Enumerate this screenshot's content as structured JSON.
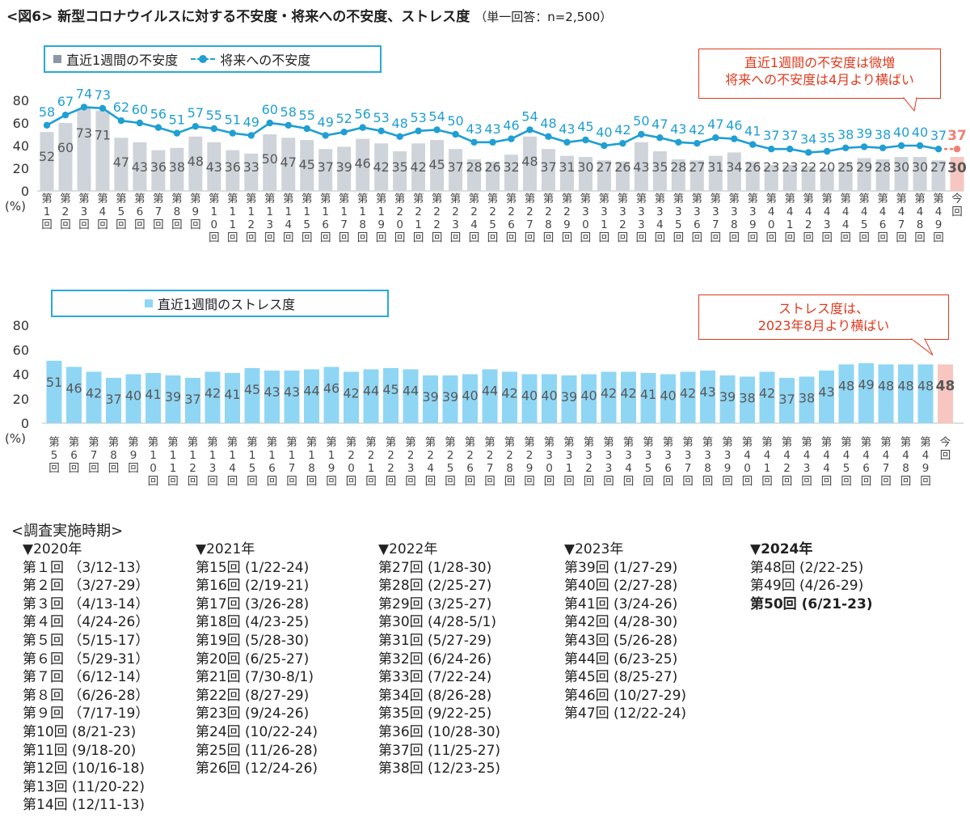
{
  "header": {
    "title": "<図6> 新型コロナウイルスに対する不安度・将来への不安度、ストレス度",
    "note": "（単一回答：n=2,500）"
  },
  "chart_data": [
    {
      "type": "bar+line",
      "categories": [
        "第1回",
        "第2回",
        "第3回",
        "第4回",
        "第5回",
        "第6回",
        "第7回",
        "第8回",
        "第9回",
        "第10回",
        "第11回",
        "第12回",
        "第13回",
        "第14回",
        "第15回",
        "第16回",
        "第17回",
        "第18回",
        "第19回",
        "第20回",
        "第21回",
        "第22回",
        "第23回",
        "第24回",
        "第25回",
        "第26回",
        "第27回",
        "第28回",
        "第29回",
        "第30回",
        "第31回",
        "第32回",
        "第33回",
        "第34回",
        "第35回",
        "第36回",
        "第37回",
        "第38回",
        "第39回",
        "第40回",
        "第41回",
        "第42回",
        "第43回",
        "第44回",
        "第45回",
        "第46回",
        "第47回",
        "第48回",
        "第49回",
        "今回"
      ],
      "series": [
        {
          "name": "直近1週間の不安度",
          "kind": "bar",
          "values": [
            52,
            60,
            73,
            71,
            47,
            43,
            36,
            38,
            48,
            43,
            36,
            33,
            50,
            47,
            45,
            37,
            39,
            46,
            42,
            35,
            42,
            45,
            37,
            28,
            26,
            32,
            48,
            37,
            31,
            30,
            27,
            26,
            43,
            35,
            28,
            27,
            31,
            34,
            26,
            23,
            23,
            22,
            20,
            25,
            29,
            28,
            30,
            30,
            27,
            30
          ]
        },
        {
          "name": "将来への不安度",
          "kind": "line",
          "values": [
            58,
            67,
            74,
            73,
            62,
            60,
            56,
            51,
            57,
            55,
            51,
            49,
            60,
            58,
            55,
            49,
            52,
            56,
            53,
            48,
            53,
            54,
            50,
            43,
            43,
            46,
            54,
            48,
            43,
            45,
            40,
            42,
            50,
            47,
            43,
            42,
            47,
            46,
            41,
            37,
            37,
            34,
            35,
            38,
            39,
            38,
            40,
            40,
            37,
            37
          ]
        }
      ],
      "ylim": [
        0,
        80
      ],
      "yticks": [
        "0",
        "20",
        "40",
        "60",
        "80"
      ],
      "ylabel": "(%)",
      "legend": {
        "bar_label": "直近1週間の不安度",
        "line_label": "将来への不安度"
      },
      "callout": {
        "line1": "直近1週間の不安度は微増",
        "line2": "将来への不安度は4月より横ばい"
      },
      "colors": {
        "bar": "#cfd4da",
        "bar_highlight": "#f7c6c0",
        "line": "#1f9fd3",
        "line_highlight": "#f08070",
        "bar_label": "#595959",
        "highlight_label": "#f08070"
      }
    },
    {
      "type": "bar",
      "categories": [
        "第5回",
        "第6回",
        "第7回",
        "第8回",
        "第9回",
        "第10回",
        "第11回",
        "第12回",
        "第13回",
        "第14回",
        "第15回",
        "第16回",
        "第17回",
        "第18回",
        "第19回",
        "第20回",
        "第21回",
        "第22回",
        "第23回",
        "第24回",
        "第25回",
        "第26回",
        "第27回",
        "第28回",
        "第29回",
        "第30回",
        "第31回",
        "第32回",
        "第33回",
        "第34回",
        "第35回",
        "第36回",
        "第37回",
        "第38回",
        "第39回",
        "第40回",
        "第41回",
        "第42回",
        "第43回",
        "第44回",
        "第45回",
        "第46回",
        "第47回",
        "第48回",
        "第49回",
        "今回"
      ],
      "series": [
        {
          "name": "直近1週間のストレス度",
          "kind": "bar",
          "values": [
            51,
            46,
            42,
            37,
            40,
            41,
            39,
            37,
            42,
            41,
            45,
            43,
            43,
            44,
            46,
            42,
            44,
            45,
            44,
            39,
            39,
            40,
            44,
            42,
            40,
            40,
            39,
            40,
            42,
            42,
            41,
            40,
            42,
            43,
            39,
            38,
            42,
            37,
            38,
            43,
            48,
            49,
            48,
            48,
            48,
            48
          ]
        }
      ],
      "ylim": [
        0,
        80
      ],
      "yticks": [
        "0",
        "20",
        "40",
        "60",
        "80"
      ],
      "ylabel": "(%)",
      "legend": {
        "bar_label": "直近1週間のストレス度"
      },
      "callout": {
        "line1": "ストレス度は、",
        "line2": "2023年8月より横ばい"
      },
      "colors": {
        "bar": "#8fd6f4",
        "bar_highlight": "#f7c6c0",
        "bar_label": "#595959",
        "highlight_label": "#595959"
      }
    }
  ],
  "schedule": {
    "heading": "<調査実施時期>",
    "years": [
      {
        "year": "▼2020年",
        "bold": false,
        "rounds": [
          {
            "round": "第１回",
            "dates": "（3/12-13）"
          },
          {
            "round": "第２回",
            "dates": "（3/27-29）"
          },
          {
            "round": "第３回",
            "dates": "（4/13-14）"
          },
          {
            "round": "第４回",
            "dates": "（4/24-26）"
          },
          {
            "round": "第５回",
            "dates": "（5/15-17）"
          },
          {
            "round": "第６回",
            "dates": "（5/29-31）"
          },
          {
            "round": "第７回",
            "dates": "（6/12-14）"
          },
          {
            "round": "第８回",
            "dates": "（6/26-28）"
          },
          {
            "round": "第９回",
            "dates": "（7/17-19）"
          },
          {
            "round": "第10回",
            "dates": "(8/21-23)"
          },
          {
            "round": "第11回",
            "dates": "(9/18-20)"
          },
          {
            "round": "第12回",
            "dates": "(10/16-18)"
          },
          {
            "round": "第13回",
            "dates": "(11/20-22)"
          },
          {
            "round": "第14回",
            "dates": "(12/11-13)"
          }
        ]
      },
      {
        "year": "▼2021年",
        "bold": false,
        "rounds": [
          {
            "round": "第15回",
            "dates": "(1/22-24)"
          },
          {
            "round": "第16回",
            "dates": "(2/19-21)"
          },
          {
            "round": "第17回",
            "dates": "(3/26-28)"
          },
          {
            "round": "第18回",
            "dates": "(4/23-25)"
          },
          {
            "round": "第19回",
            "dates": "(5/28-30)"
          },
          {
            "round": "第20回",
            "dates": "(6/25-27)"
          },
          {
            "round": "第21回",
            "dates": "(7/30-8/1)"
          },
          {
            "round": "第22回",
            "dates": "(8/27-29)"
          },
          {
            "round": "第23回",
            "dates": "(9/24-26)"
          },
          {
            "round": "第24回",
            "dates": "(10/22-24)"
          },
          {
            "round": "第25回",
            "dates": "(11/26-28)"
          },
          {
            "round": "第26回",
            "dates": "(12/24-26)"
          }
        ]
      },
      {
        "year": "▼2022年",
        "bold": false,
        "rounds": [
          {
            "round": "第27回",
            "dates": "(1/28-30)"
          },
          {
            "round": "第28回",
            "dates": "(2/25-27)"
          },
          {
            "round": "第29回",
            "dates": "(3/25-27)"
          },
          {
            "round": "第30回",
            "dates": "(4/28-5/1)"
          },
          {
            "round": "第31回",
            "dates": "(5/27-29)"
          },
          {
            "round": "第32回",
            "dates": "(6/24-26)"
          },
          {
            "round": "第33回",
            "dates": "(7/22-24)"
          },
          {
            "round": "第34回",
            "dates": "(8/26-28)"
          },
          {
            "round": "第35回",
            "dates": "(9/22-25)"
          },
          {
            "round": "第36回",
            "dates": "(10/28-30)"
          },
          {
            "round": "第37回",
            "dates": "(11/25-27)"
          },
          {
            "round": "第38回",
            "dates": "(12/23-25)"
          }
        ]
      },
      {
        "year": "▼2023年",
        "bold": false,
        "rounds": [
          {
            "round": "第39回",
            "dates": "(1/27-29)"
          },
          {
            "round": "第40回",
            "dates": "(2/27-28)"
          },
          {
            "round": "第41回",
            "dates": "(3/24-26)"
          },
          {
            "round": "第42回",
            "dates": "(4/28-30)"
          },
          {
            "round": "第43回",
            "dates": "(5/26-28)"
          },
          {
            "round": "第44回",
            "dates": "(6/23-25)"
          },
          {
            "round": "第45回",
            "dates": "(8/25-27)"
          },
          {
            "round": "第46回",
            "dates": "(10/27-29)"
          },
          {
            "round": "第47回",
            "dates": "(12/22-24)"
          }
        ]
      },
      {
        "year": "▼2024年",
        "bold": true,
        "rounds": [
          {
            "round": "第48回",
            "dates": "(2/22-25)",
            "bold": false
          },
          {
            "round": "第49回",
            "dates": "(4/26-29)",
            "bold": false
          },
          {
            "round": "第50回",
            "dates": "(6/21-23)",
            "bold": true
          }
        ]
      }
    ]
  }
}
